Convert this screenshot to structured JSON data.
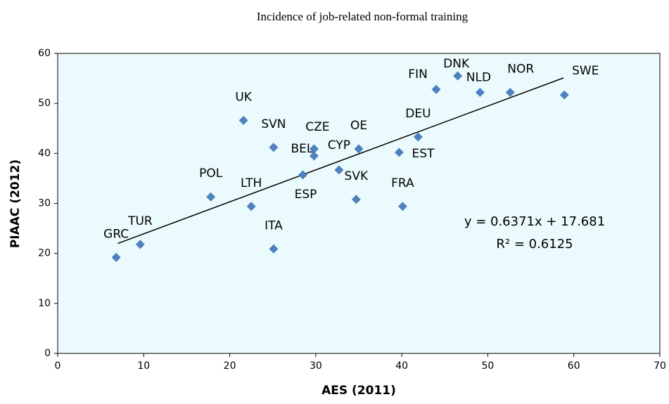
{
  "chart_data": {
    "type": "scatter",
    "title": "Incidence of job-related non-formal training",
    "x_label": "AES (2011)",
    "y_label": "PIAAC (2012)",
    "labels": [
      "GRC",
      "TUR",
      "POL",
      "LTH",
      "UK",
      "SVN",
      "ITA",
      "ESP",
      "BEL",
      "CZE",
      "CYP",
      "SVK",
      "OE",
      "EST",
      "FRA",
      "DEU",
      "FIN",
      "DNK",
      "NLD",
      "NOR",
      "SWE"
    ],
    "x": [
      6.8,
      9.6,
      17.8,
      22.5,
      21.6,
      25.1,
      25.1,
      28.5,
      29.8,
      29.8,
      32.7,
      34.7,
      35.0,
      39.7,
      40.1,
      41.9,
      44.0,
      46.5,
      49.1,
      52.6,
      58.9
    ],
    "y": [
      19.2,
      21.8,
      31.3,
      29.4,
      46.6,
      41.2,
      20.9,
      35.7,
      39.5,
      40.9,
      36.7,
      30.8,
      40.9,
      40.2,
      29.4,
      43.3,
      52.8,
      55.5,
      52.2,
      52.2,
      51.7
    ],
    "color": "#4f81bd",
    "trendline": {
      "x": [
        7,
        58.8
      ],
      "y": [
        22.0,
        55.1
      ]
    },
    "annotations": [
      "y = 0.6371x + 17.681",
      "R² = 0.6125"
    ],
    "xlim": [
      0,
      70
    ],
    "xticks": [
      0,
      10,
      20,
      30,
      40,
      50,
      60,
      70
    ],
    "ylim": [
      0,
      60
    ],
    "yticks": [
      0,
      10,
      20,
      30,
      40,
      50,
      60
    ]
  }
}
